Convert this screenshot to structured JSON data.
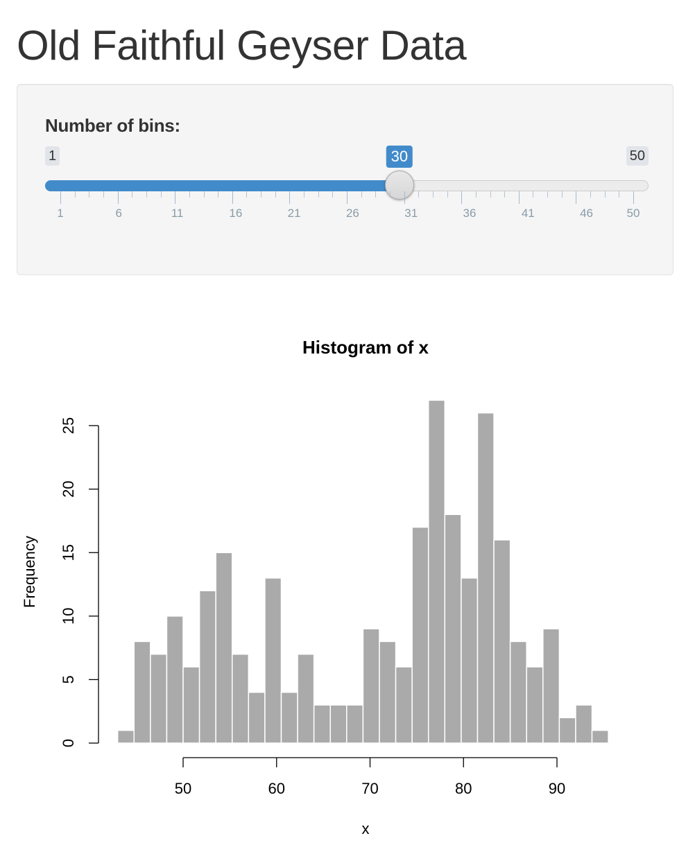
{
  "page": {
    "title": "Old Faithful Geyser Data"
  },
  "sidebar": {
    "slider": {
      "label": "Number of bins:",
      "min": 1,
      "max": 50,
      "value": 30,
      "min_label": "1",
      "max_label": "50",
      "value_label": "30",
      "grid_labels": [
        "1",
        "6",
        "11",
        "16",
        "21",
        "26",
        "31",
        "36",
        "41",
        "46",
        "50"
      ],
      "accent_color": "#428bca"
    }
  },
  "chart_data": {
    "type": "bar",
    "title": "Histogram of x",
    "xlabel": "x",
    "ylabel": "Frequency",
    "bin_start": 43.0,
    "bin_width": 1.75,
    "values": [
      1,
      8,
      7,
      10,
      6,
      12,
      15,
      7,
      4,
      13,
      4,
      7,
      3,
      3,
      3,
      9,
      8,
      6,
      17,
      27,
      18,
      13,
      26,
      16,
      8,
      6,
      9,
      2,
      3,
      1
    ],
    "xticks": [
      50,
      60,
      70,
      80,
      90
    ],
    "xtick_labels": [
      "50",
      "60",
      "70",
      "80",
      "90"
    ],
    "yticks": [
      0,
      5,
      10,
      15,
      20,
      25
    ],
    "ytick_labels": [
      "0",
      "5",
      "10",
      "15",
      "20",
      "25"
    ],
    "bar_color": "#aaaaaa",
    "grid": false
  }
}
